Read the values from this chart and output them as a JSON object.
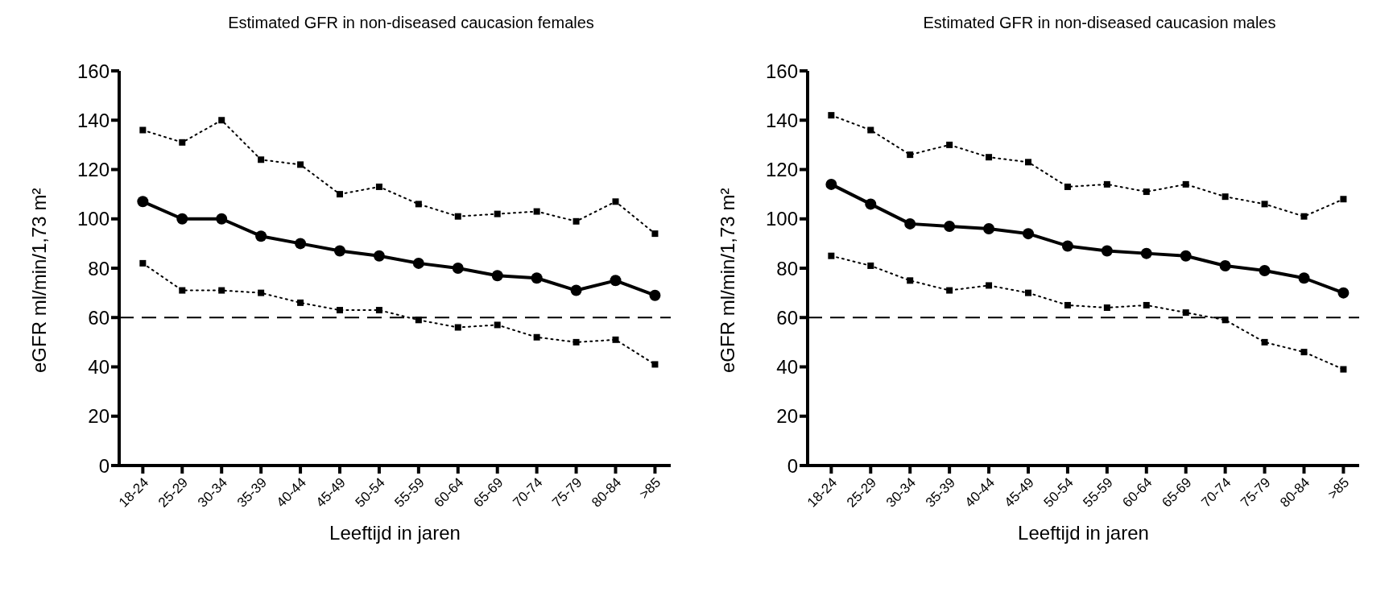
{
  "chart_data": [
    {
      "type": "line",
      "title": "Estimated GFR in non-diseased caucasion females",
      "xlabel": "Leeftijd in jaren",
      "ylabel": "eGFR ml/min/1,73 m²",
      "categories": [
        "18-24",
        "25-29",
        "30-34",
        "35-39",
        "40-44",
        "45-49",
        "50-54",
        "55-59",
        "60-64",
        "65-69",
        "70-74",
        "75-79",
        "80-84",
        ">85"
      ],
      "series": [
        {
          "color": "#000000",
          "marker": "square",
          "line_style": "dotted",
          "values": [
            136,
            131,
            140,
            124,
            122,
            110,
            113,
            106,
            101,
            102,
            103,
            99,
            107,
            94
          ]
        },
        {
          "color": "#000000",
          "marker": "circle",
          "line_style": "solid",
          "values": [
            107,
            100,
            100,
            93,
            90,
            87,
            85,
            82,
            80,
            77,
            76,
            71,
            75,
            69
          ]
        },
        {
          "color": "#000000",
          "marker": "square",
          "line_style": "dotted",
          "values": [
            82,
            71,
            71,
            70,
            66,
            63,
            63,
            59,
            56,
            57,
            52,
            50,
            51,
            41
          ]
        }
      ],
      "ylim": [
        0,
        160
      ],
      "yticks": [
        0,
        20,
        40,
        60,
        80,
        100,
        120,
        140,
        160
      ],
      "grid": false,
      "legend": false,
      "ref_lines": [
        {
          "axis": "y",
          "value": 60,
          "line_style": "dashed",
          "color": "#000000"
        }
      ]
    },
    {
      "type": "line",
      "title": "Estimated GFR in non-diseased caucasion males",
      "xlabel": "Leeftijd in jaren",
      "ylabel": "eGFR ml/min/1,73 m²",
      "categories": [
        "18-24",
        "25-29",
        "30-34",
        "35-39",
        "40-44",
        "45-49",
        "50-54",
        "55-59",
        "60-64",
        "65-69",
        "70-74",
        "75-79",
        "80-84",
        ">85"
      ],
      "series": [
        {
          "color": "#000000",
          "marker": "square",
          "line_style": "dotted",
          "values": [
            142,
            136,
            126,
            130,
            125,
            123,
            113,
            114,
            111,
            114,
            109,
            106,
            101,
            108
          ]
        },
        {
          "color": "#000000",
          "marker": "circle",
          "line_style": "solid",
          "values": [
            114,
            106,
            98,
            97,
            96,
            94,
            89,
            87,
            86,
            85,
            81,
            79,
            76,
            70
          ]
        },
        {
          "color": "#000000",
          "marker": "square",
          "line_style": "dotted",
          "values": [
            85,
            81,
            75,
            71,
            73,
            70,
            65,
            64,
            65,
            62,
            59,
            50,
            46,
            39
          ]
        }
      ],
      "ylim": [
        0,
        160
      ],
      "yticks": [
        0,
        20,
        40,
        60,
        80,
        100,
        120,
        140,
        160
      ],
      "grid": false,
      "legend": false,
      "ref_lines": [
        {
          "axis": "y",
          "value": 60,
          "line_style": "dashed",
          "color": "#000000"
        }
      ]
    }
  ]
}
